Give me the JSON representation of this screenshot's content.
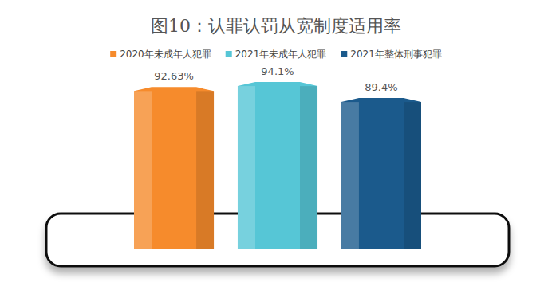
{
  "chart_data": {
    "type": "bar",
    "title": "图10：认罪认罚从宽制度适用率",
    "categories": [
      null
    ],
    "series": [
      {
        "name": "2020年未成年人犯罪",
        "color": "#f68b2c",
        "values": [
          92.63
        ],
        "value_labels": [
          "92.63%"
        ]
      },
      {
        "name": "2021年未成年人犯罪",
        "color": "#56c6d6",
        "values": [
          94.1
        ],
        "value_labels": [
          "94.1%"
        ]
      },
      {
        "name": "2021年整体刑事犯罪",
        "color": "#1b5a8c",
        "values": [
          89.4
        ],
        "value_labels": [
          "89.4%"
        ]
      }
    ],
    "ylim": [
      45,
      100
    ],
    "tick_labels": false,
    "grid": false,
    "legend": "top",
    "data_labels": true
  }
}
